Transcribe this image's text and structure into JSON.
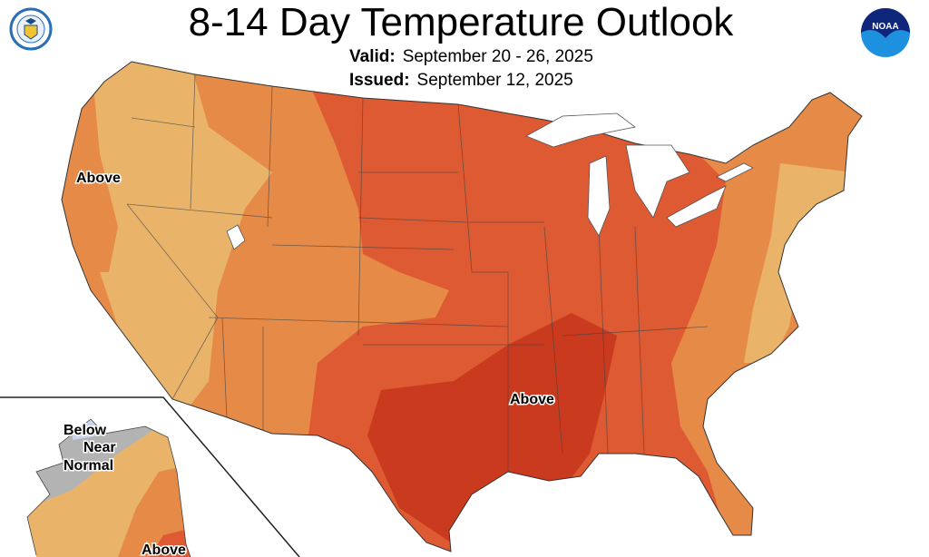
{
  "header": {
    "title": "8-14 Day Temperature Outlook",
    "valid_label": "Valid:",
    "valid_value": "September 20 - 26, 2025",
    "issued_label": "Issued:",
    "issued_value": "September 12, 2025"
  },
  "logos": {
    "left": "US Department of Commerce seal",
    "right": "NOAA",
    "right_text": "NOAA"
  },
  "map": {
    "labels": {
      "west": "Above",
      "south": "Above",
      "ak_below": "Below",
      "ak_near": "Near",
      "ak_normal": "Normal",
      "ak_above": "Above"
    },
    "colors": {
      "above_33": "#e9b46a",
      "above_40": "#e68a48",
      "above_50": "#dd5a33",
      "above_60": "#c93a1e",
      "near_normal": "#b3b3b3",
      "below": "#c9d6ee",
      "water": "#ffffff"
    }
  }
}
